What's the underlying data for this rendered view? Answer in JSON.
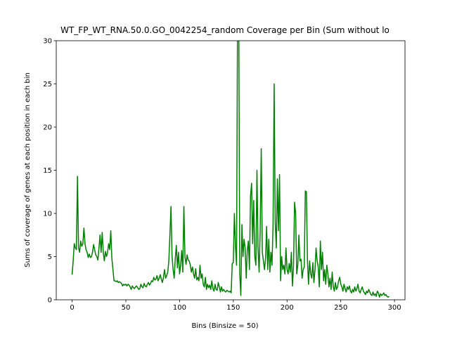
{
  "chart_data": {
    "type": "line",
    "title": "WT_FP_WT_RNA.50.0.GO_0042254_random Coverage per Bin (Sum without lo",
    "x_label": "Bins (Binsize = 50)",
    "y_label": "Sums of coverage of genes at each position in each bin",
    "x": [
      0,
      1,
      2,
      3,
      4,
      5,
      6,
      7,
      8,
      9,
      10,
      11,
      12,
      13,
      14,
      15,
      16,
      17,
      18,
      19,
      20,
      21,
      22,
      23,
      24,
      25,
      26,
      27,
      28,
      29,
      30,
      31,
      32,
      33,
      34,
      35,
      36,
      37,
      38,
      39,
      40,
      41,
      42,
      43,
      44,
      45,
      46,
      47,
      48,
      49,
      50,
      51,
      52,
      53,
      54,
      55,
      56,
      57,
      58,
      59,
      60,
      61,
      62,
      63,
      64,
      65,
      66,
      67,
      68,
      69,
      70,
      71,
      72,
      73,
      74,
      75,
      76,
      77,
      78,
      79,
      80,
      81,
      82,
      83,
      84,
      85,
      86,
      87,
      88,
      89,
      90,
      91,
      92,
      93,
      94,
      95,
      96,
      97,
      98,
      99,
      100,
      101,
      102,
      103,
      104,
      105,
      106,
      107,
      108,
      109,
      110,
      111,
      112,
      113,
      114,
      115,
      116,
      117,
      118,
      119,
      120,
      121,
      122,
      123,
      124,
      125,
      126,
      127,
      128,
      129,
      130,
      131,
      132,
      133,
      134,
      135,
      136,
      137,
      138,
      139,
      140,
      141,
      142,
      143,
      144,
      145,
      146,
      147,
      148,
      149,
      150,
      151,
      152,
      153,
      154,
      155,
      156,
      157,
      158,
      159,
      160,
      161,
      162,
      163,
      164,
      165,
      166,
      167,
      168,
      169,
      170,
      171,
      172,
      173,
      174,
      175,
      176,
      177,
      178,
      179,
      180,
      181,
      182,
      183,
      184,
      185,
      186,
      187,
      188,
      189,
      190,
      191,
      192,
      193,
      194,
      195,
      196,
      197,
      198,
      199,
      200,
      201,
      202,
      203,
      204,
      205,
      206,
      207,
      208,
      209,
      210,
      211,
      212,
      213,
      214,
      215,
      216,
      217,
      218,
      219,
      220,
      221,
      222,
      223,
      224,
      225,
      226,
      227,
      228,
      229,
      230,
      231,
      232,
      233,
      234,
      235,
      236,
      237,
      238,
      239,
      240,
      241,
      242,
      243,
      244,
      245,
      246,
      247,
      248,
      249,
      250,
      251,
      252,
      253,
      254,
      255,
      256,
      257,
      258,
      259,
      260,
      261,
      262,
      263,
      264,
      265,
      266,
      267,
      268,
      269,
      270,
      271,
      272,
      273,
      274,
      275,
      276,
      277,
      278,
      279,
      280,
      281,
      282,
      283,
      284,
      285,
      286,
      287,
      288,
      289,
      290,
      291,
      292,
      293,
      294,
      295
    ],
    "series": [
      {
        "color": "#008000",
        "values": [
          2.9,
          4.5,
          6.5,
          6.0,
          5.8,
          14.3,
          6.0,
          5.5,
          6.8,
          6.2,
          6.5,
          8.3,
          6.5,
          5.8,
          5.5,
          4.9,
          5.3,
          4.9,
          5.0,
          5.5,
          6.4,
          5.8,
          5.2,
          5.0,
          4.6,
          6.0,
          7.5,
          5.5,
          7.8,
          5.5,
          4.5,
          5.6,
          5.0,
          5.5,
          6.5,
          5.8,
          8.0,
          4.8,
          3.5,
          2.2,
          2.2,
          2.1,
          2.2,
          2.0,
          2.1,
          2.0,
          1.9,
          1.6,
          1.8,
          1.7,
          1.8,
          1.6,
          1.8,
          1.7,
          1.5,
          1.2,
          1.6,
          1.4,
          1.3,
          1.5,
          1.6,
          1.4,
          1.2,
          1.3,
          1.8,
          1.5,
          1.4,
          1.9,
          1.6,
          1.5,
          1.8,
          2.0,
          1.7,
          1.9,
          2.2,
          2.1,
          2.6,
          2.3,
          2.4,
          2.8,
          2.2,
          2.5,
          2.9,
          2.4,
          2.0,
          2.6,
          3.5,
          2.5,
          2.8,
          3.2,
          4.5,
          7.5,
          10.8,
          5.0,
          3.5,
          2.5,
          4.8,
          6.3,
          3.7,
          5.5,
          3.0,
          4.0,
          5.7,
          3.2,
          10.8,
          5.0,
          4.1,
          5.2,
          4.6,
          4.5,
          4.0,
          3.2,
          3.8,
          3.0,
          2.5,
          3.6,
          2.3,
          2.6,
          2.2,
          4.0,
          2.5,
          3.0,
          1.8,
          1.5,
          2.6,
          1.2,
          1.8,
          1.4,
          1.7,
          1.2,
          2.2,
          1.3,
          1.0,
          1.8,
          1.2,
          1.1,
          2.0,
          1.5,
          0.9,
          1.5,
          1.0,
          1.2,
          1.0,
          0.9,
          1.1,
          1.0,
          0.9,
          1.0,
          0.8,
          4.2,
          4.3,
          10.0,
          6.2,
          4.0,
          35,
          35,
          3.0,
          0.5,
          8.7,
          5.0,
          7.0,
          6.0,
          2.5,
          5.7,
          6.8,
          3.5,
          12.0,
          13.5,
          6.5,
          11.5,
          5.0,
          4.0,
          15.0,
          6.0,
          3.2,
          8.0,
          17.5,
          5.5,
          4.5,
          3.5,
          4.8,
          8.5,
          3.5,
          7.0,
          3.2,
          5.5,
          4.0,
          8.8,
          25.0,
          9.0,
          6.0,
          14.0,
          8.0,
          14.5,
          2.2,
          5.0,
          3.5,
          4.0,
          3.0,
          6.0,
          3.5,
          3.0,
          4.2,
          3.2,
          5.5,
          1.6,
          3.8,
          11.3,
          10.0,
          3.0,
          4.0,
          7.5,
          4.5,
          4.7,
          2.5,
          3.5,
          3.8,
          12.6,
          12.5,
          4.5,
          1.8,
          4.5,
          3.0,
          2.5,
          4.3,
          2.0,
          3.5,
          6.0,
          4.5,
          3.8,
          1.5,
          6.8,
          3.5,
          5.5,
          2.2,
          3.5,
          1.8,
          4.0,
          3.0,
          1.5,
          2.5,
          1.2,
          3.2,
          1.5,
          1.0,
          2.0,
          1.2,
          1.5,
          2.2,
          2.6,
          1.8,
          1.5,
          1.0,
          1.8,
          1.3,
          0.9,
          1.5,
          1.2,
          1.6,
          1.0,
          0.8,
          1.2,
          0.9,
          1.5,
          1.0,
          1.3,
          1.8,
          1.0,
          0.8,
          1.2,
          1.5,
          1.0,
          0.8,
          0.6,
          1.0,
          0.8,
          1.2,
          0.9,
          0.6,
          0.5,
          0.9,
          0.5,
          0.7,
          0.4,
          1.0,
          0.8,
          0.3,
          0.7,
          0.5,
          0.6,
          0.8,
          0.5,
          0.6,
          0.4,
          0.3,
          0.4
        ]
      }
    ],
    "xlim": [
      -14.75,
      309.75
    ],
    "xticks": [
      0,
      50,
      100,
      150,
      200,
      250,
      300
    ],
    "ylim": [
      0,
      30
    ],
    "yticks": [
      0,
      5,
      10,
      15,
      20,
      25,
      30
    ]
  }
}
